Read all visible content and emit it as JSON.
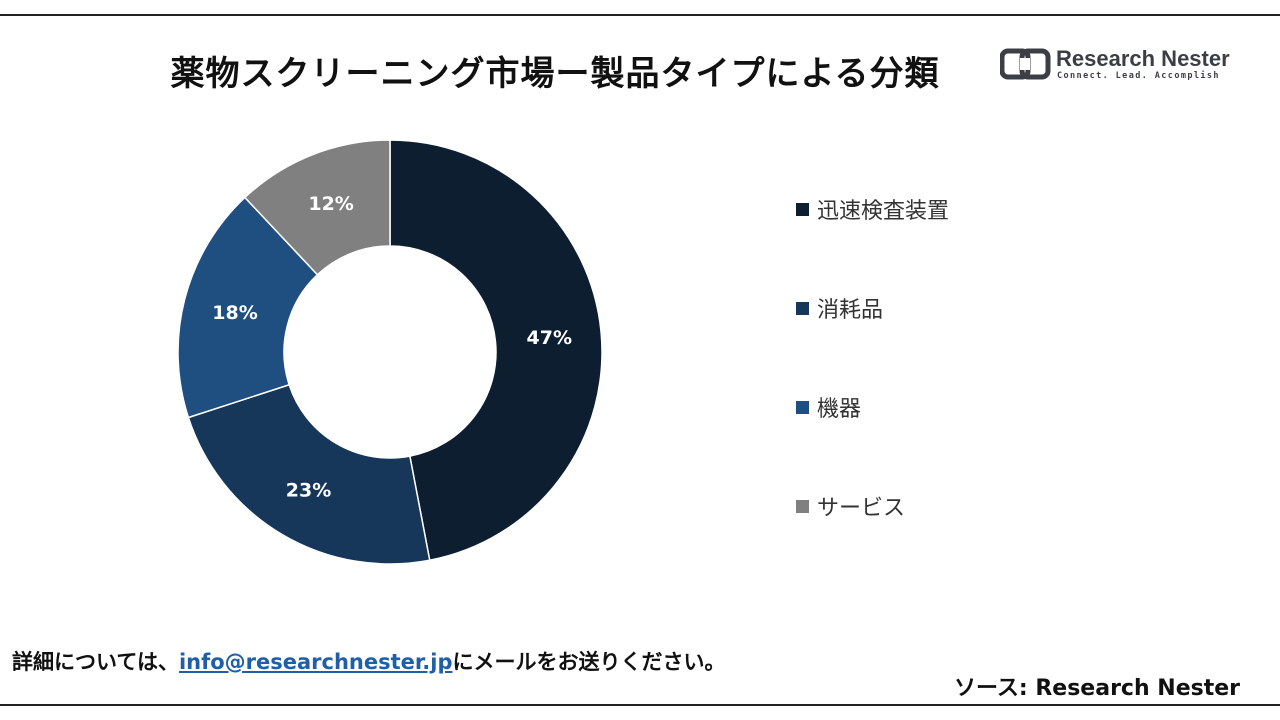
{
  "title": "薬物スクリーニング市場ー製品タイプによる分類",
  "logo": {
    "name": "Research Nester",
    "tagline": "Connect. Lead. Accomplish"
  },
  "chart_data": {
    "type": "pie",
    "donut": true,
    "categories": [
      "迅速検査装置",
      "消耗品",
      "機器",
      "サービス"
    ],
    "values": [
      47,
      23,
      18,
      12
    ],
    "labels": [
      "47%",
      "23%",
      "18%",
      "12%"
    ],
    "colors": [
      "#0d1e30",
      "#16375a",
      "#1f4e80",
      "#808080"
    ],
    "legend_position": "right"
  },
  "footer": {
    "prefix": "詳細については、",
    "email": "info@researchnester.jp",
    "suffix": "にメールをお送りください。",
    "source": "ソース: Research Nester"
  }
}
